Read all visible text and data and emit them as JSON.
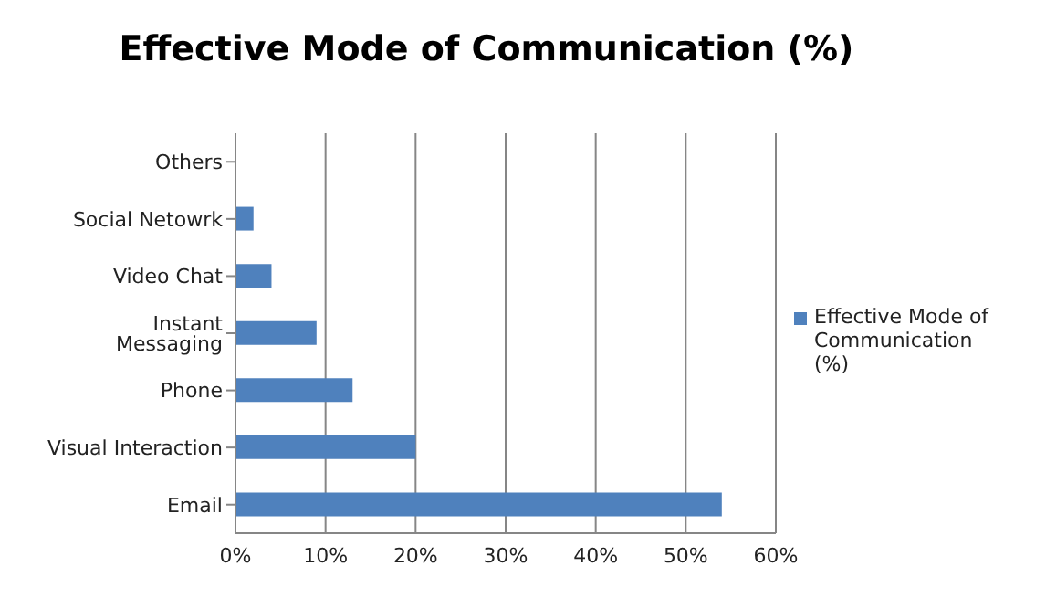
{
  "chart_data": {
    "type": "bar",
    "orientation": "horizontal",
    "title": "Effective Mode of Communication (%)",
    "categories": [
      "Others",
      "Social Netowrk",
      "Video Chat",
      "Instant Messaging",
      "Phone",
      "Visual Interaction",
      "Email"
    ],
    "series": [
      {
        "name": "Effective Mode of Communication (%)",
        "color": "#4f81bd",
        "values": [
          0,
          2,
          4,
          9,
          13,
          20,
          54
        ]
      }
    ],
    "xlim": [
      0,
      60
    ],
    "xticks": [
      {
        "value": 0,
        "label": "0%"
      },
      {
        "value": 10,
        "label": "10%"
      },
      {
        "value": 20,
        "label": "20%"
      },
      {
        "value": 30,
        "label": "30%"
      },
      {
        "value": 40,
        "label": "40%"
      },
      {
        "value": 50,
        "label": "50%"
      },
      {
        "value": 60,
        "label": "60%"
      }
    ],
    "grid": "x",
    "legend": "right"
  }
}
